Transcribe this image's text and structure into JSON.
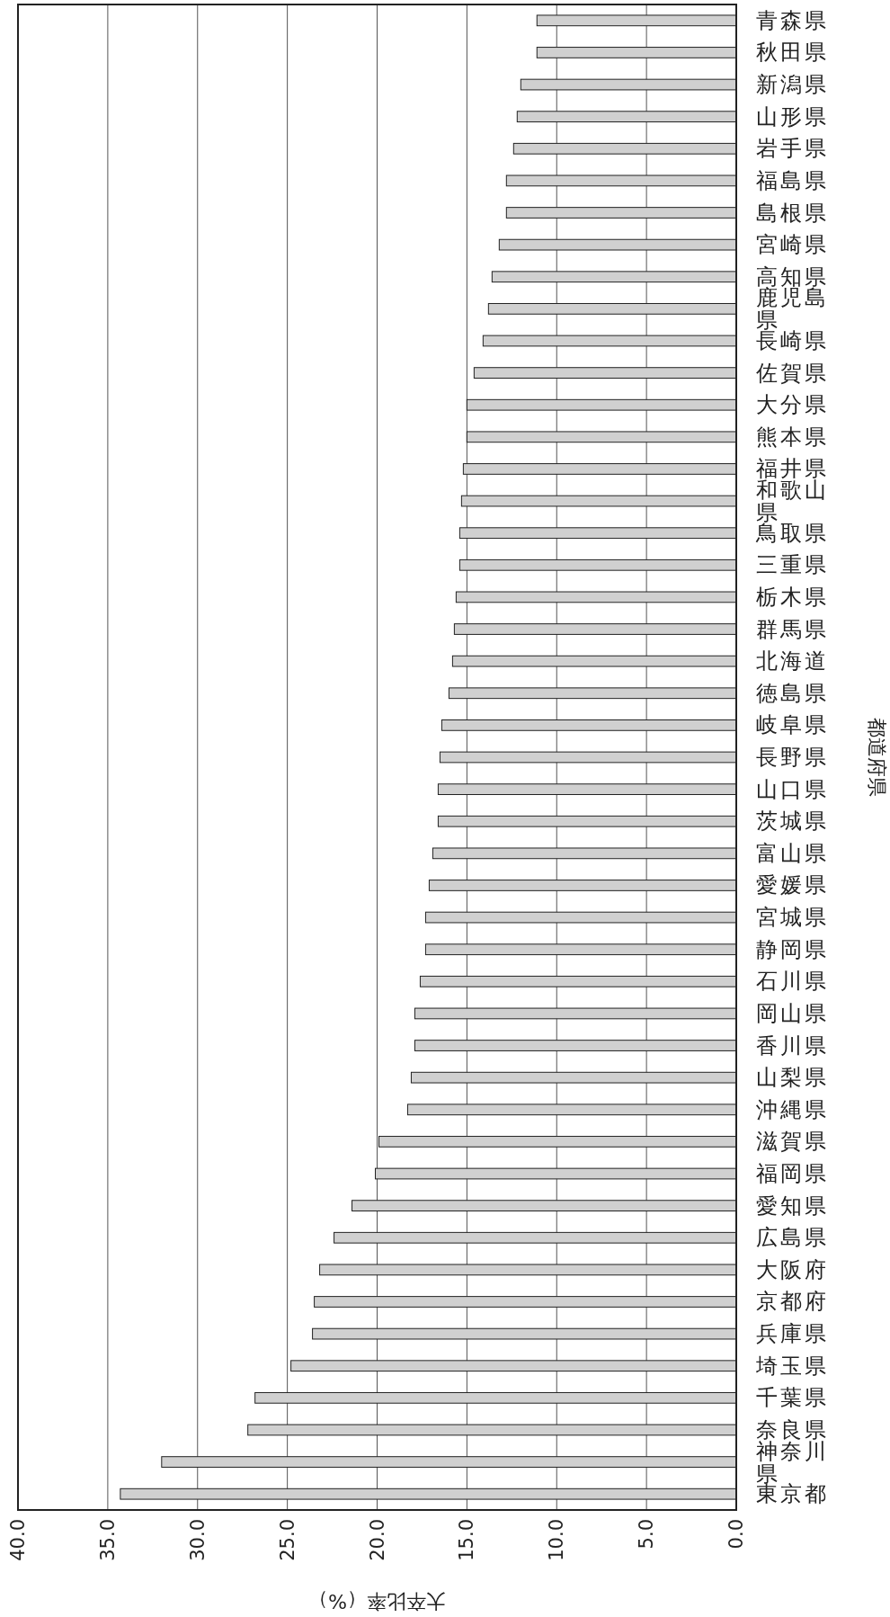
{
  "chart_data": {
    "type": "bar",
    "orientation": "horizontal",
    "xlabel": "大卒比率（%）",
    "ylabel": "都道府県",
    "categories": [
      "青森県",
      "秋田県",
      "新潟県",
      "山形県",
      "岩手県",
      "福島県",
      "島根県",
      "宮崎県",
      "高知県",
      "鹿児島県",
      "長崎県",
      "佐賀県",
      "大分県",
      "熊本県",
      "福井県",
      "和歌山県",
      "鳥取県",
      "三重県",
      "栃木県",
      "群馬県",
      "北海道",
      "徳島県",
      "岐阜県",
      "長野県",
      "山口県",
      "茨城県",
      "富山県",
      "愛媛県",
      "宮城県",
      "静岡県",
      "石川県",
      "岡山県",
      "香川県",
      "山梨県",
      "沖縄県",
      "滋賀県",
      "福岡県",
      "愛知県",
      "広島県",
      "大阪府",
      "京都府",
      "兵庫県",
      "埼玉県",
      "千葉県",
      "奈良県",
      "神奈川県",
      "東京都"
    ],
    "values": [
      11.1,
      11.1,
      12.0,
      12.2,
      12.4,
      12.8,
      12.8,
      13.2,
      13.6,
      13.8,
      14.1,
      14.6,
      15.0,
      15.0,
      15.2,
      15.3,
      15.4,
      15.4,
      15.6,
      15.7,
      15.8,
      16.0,
      16.4,
      16.5,
      16.6,
      16.6,
      16.9,
      17.1,
      17.3,
      17.3,
      17.6,
      17.9,
      17.9,
      18.1,
      18.3,
      19.9,
      20.1,
      21.4,
      22.4,
      23.2,
      23.5,
      23.6,
      24.8,
      26.8,
      27.2,
      32.0,
      34.3
    ],
    "color": "#d0d0d0",
    "xlim": [
      40,
      0
    ],
    "xticks": [
      {
        "value": 40,
        "label": "40.0"
      },
      {
        "value": 35,
        "label": "35.0"
      },
      {
        "value": 30,
        "label": "30.0"
      },
      {
        "value": 25,
        "label": "25.0"
      },
      {
        "value": 20,
        "label": "20.0"
      },
      {
        "value": 15,
        "label": "15.0"
      },
      {
        "value": 10,
        "label": "10.0"
      },
      {
        "value": 5,
        "label": "5.0"
      },
      {
        "value": 0,
        "label": "0.0"
      }
    ],
    "grid": "x"
  }
}
